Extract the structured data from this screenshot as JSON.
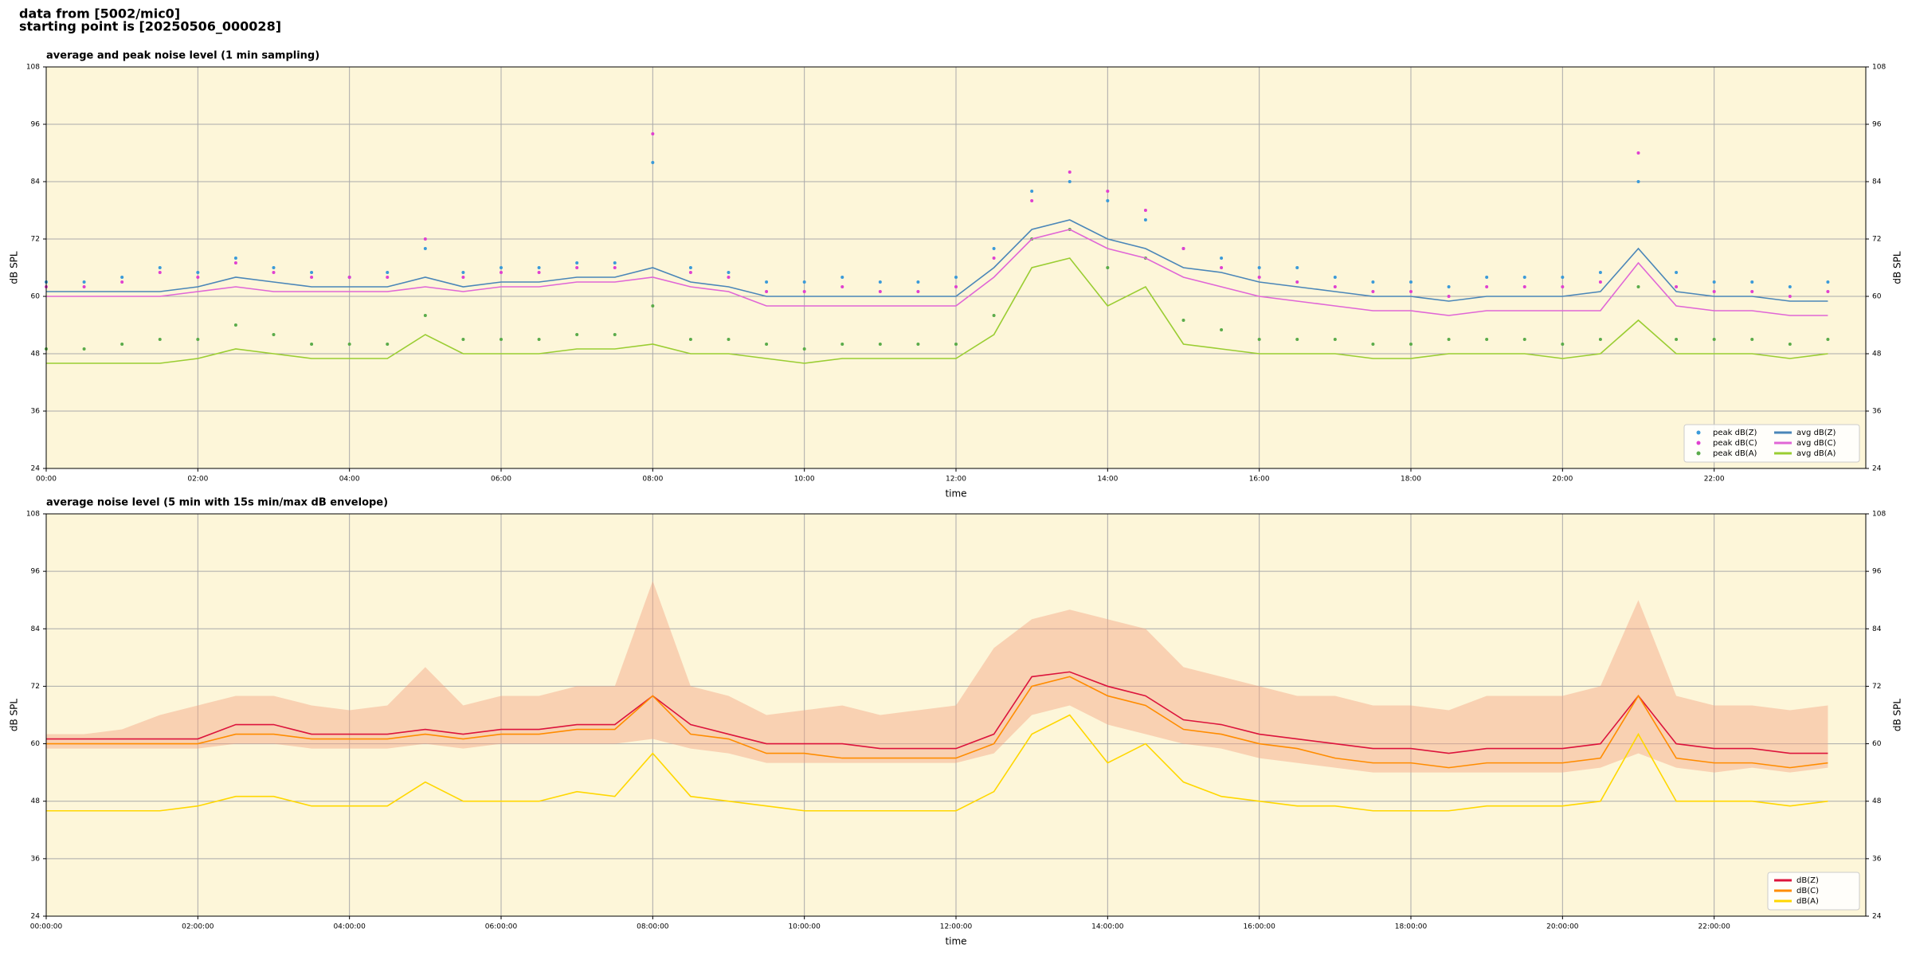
{
  "header": {
    "line1": "data from [5002/mic0]",
    "line2": "starting point is [20250506_000028]"
  },
  "chart_data": [
    {
      "type": "line",
      "title": "average and peak noise level (1 min sampling)",
      "xlabel": "time",
      "ylabel": "dB SPL",
      "xlim": [
        0,
        24
      ],
      "ylim": [
        24,
        108
      ],
      "xticks": [
        {
          "value": 0,
          "label": "00:00"
        },
        {
          "value": 2,
          "label": "02:00"
        },
        {
          "value": 4,
          "label": "04:00"
        },
        {
          "value": 6,
          "label": "06:00"
        },
        {
          "value": 8,
          "label": "08:00"
        },
        {
          "value": 10,
          "label": "10:00"
        },
        {
          "value": 12,
          "label": "12:00"
        },
        {
          "value": 14,
          "label": "14:00"
        },
        {
          "value": 16,
          "label": "16:00"
        },
        {
          "value": 18,
          "label": "18:00"
        },
        {
          "value": 20,
          "label": "20:00"
        },
        {
          "value": 22,
          "label": "22:00"
        }
      ],
      "yticks": [
        24,
        36,
        48,
        60,
        72,
        84,
        96,
        108
      ],
      "grid": true,
      "background": "#fdf6d9",
      "legend": "lower right",
      "legend_columns": 2,
      "x": [
        0,
        0.5,
        1,
        1.5,
        2,
        2.5,
        3,
        3.5,
        4,
        4.5,
        5,
        5.5,
        6,
        6.5,
        7,
        7.5,
        8,
        8.5,
        9,
        9.5,
        10,
        10.5,
        11,
        11.5,
        12,
        12.5,
        13,
        13.5,
        14,
        14.5,
        15,
        15.5,
        16,
        16.5,
        17,
        17.5,
        18,
        18.5,
        19,
        19.5,
        20,
        20.5,
        21,
        21.5,
        22,
        22.5,
        23,
        23.5
      ],
      "series": [
        {
          "name": "peak dB(Z)",
          "style": "points",
          "color": "#3a9ad9",
          "values": [
            63,
            63,
            64,
            66,
            65,
            68,
            66,
            65,
            64,
            65,
            70,
            65,
            66,
            66,
            67,
            67,
            88,
            66,
            65,
            63,
            63,
            64,
            63,
            63,
            64,
            70,
            82,
            84,
            80,
            76,
            70,
            68,
            66,
            66,
            64,
            63,
            63,
            62,
            64,
            64,
            64,
            65,
            84,
            65,
            63,
            63,
            62,
            63
          ]
        },
        {
          "name": "peak dB(C)",
          "style": "points",
          "color": "#e040d0",
          "values": [
            62,
            62,
            63,
            65,
            64,
            67,
            65,
            64,
            64,
            64,
            72,
            64,
            65,
            65,
            66,
            66,
            94,
            65,
            64,
            61,
            61,
            62,
            61,
            61,
            62,
            68,
            80,
            86,
            82,
            78,
            70,
            66,
            64,
            63,
            62,
            61,
            61,
            60,
            62,
            62,
            62,
            63,
            90,
            62,
            61,
            61,
            60,
            61
          ]
        },
        {
          "name": "peak dB(A)",
          "style": "points",
          "color": "#5aab4a",
          "values": [
            49,
            49,
            50,
            51,
            51,
            54,
            52,
            50,
            50,
            50,
            56,
            51,
            51,
            51,
            52,
            52,
            58,
            51,
            51,
            50,
            49,
            50,
            50,
            50,
            50,
            56,
            72,
            74,
            66,
            68,
            55,
            53,
            51,
            51,
            51,
            50,
            50,
            51,
            51,
            51,
            50,
            51,
            62,
            51,
            51,
            51,
            50,
            51
          ]
        },
        {
          "name": "avg dB(Z)",
          "style": "line",
          "color": "#4a86b8",
          "values": [
            61,
            61,
            61,
            61,
            62,
            64,
            63,
            62,
            62,
            62,
            64,
            62,
            63,
            63,
            64,
            64,
            66,
            63,
            62,
            60,
            60,
            60,
            60,
            60,
            60,
            66,
            74,
            76,
            72,
            70,
            66,
            65,
            63,
            62,
            61,
            60,
            60,
            59,
            60,
            60,
            60,
            61,
            70,
            61,
            60,
            60,
            59,
            59
          ]
        },
        {
          "name": "avg dB(C)",
          "style": "line",
          "color": "#e066d6",
          "values": [
            60,
            60,
            60,
            60,
            61,
            62,
            61,
            61,
            61,
            61,
            62,
            61,
            62,
            62,
            63,
            63,
            64,
            62,
            61,
            58,
            58,
            58,
            58,
            58,
            58,
            64,
            72,
            74,
            70,
            68,
            64,
            62,
            60,
            59,
            58,
            57,
            57,
            56,
            57,
            57,
            57,
            57,
            67,
            58,
            57,
            57,
            56,
            56
          ]
        },
        {
          "name": "avg dB(A)",
          "style": "line",
          "color": "#9acd32",
          "values": [
            46,
            46,
            46,
            46,
            47,
            49,
            48,
            47,
            47,
            47,
            52,
            48,
            48,
            48,
            49,
            49,
            50,
            48,
            48,
            47,
            46,
            47,
            47,
            47,
            47,
            52,
            66,
            68,
            58,
            62,
            50,
            49,
            48,
            48,
            48,
            47,
            47,
            48,
            48,
            48,
            47,
            48,
            55,
            48,
            48,
            48,
            47,
            48
          ]
        }
      ]
    },
    {
      "type": "line",
      "title": "average noise level (5 min with 15s min/max dB envelope)",
      "xlabel": "time",
      "ylabel": "dB SPL",
      "xlim": [
        0,
        24
      ],
      "ylim": [
        24,
        108
      ],
      "xticks": [
        {
          "value": 0,
          "label": "00:00:00"
        },
        {
          "value": 2,
          "label": "02:00:00"
        },
        {
          "value": 4,
          "label": "04:00:00"
        },
        {
          "value": 6,
          "label": "06:00:00"
        },
        {
          "value": 8,
          "label": "08:00:00"
        },
        {
          "value": 10,
          "label": "10:00:00"
        },
        {
          "value": 12,
          "label": "12:00:00"
        },
        {
          "value": 14,
          "label": "14:00:00"
        },
        {
          "value": 16,
          "label": "16:00:00"
        },
        {
          "value": 18,
          "label": "18:00:00"
        },
        {
          "value": 20,
          "label": "20:00:00"
        },
        {
          "value": 22,
          "label": "22:00:00"
        }
      ],
      "yticks": [
        24,
        36,
        48,
        60,
        72,
        84,
        96,
        108
      ],
      "grid": true,
      "background": "#fdf6d9",
      "legend": "lower right",
      "legend_columns": 1,
      "x": [
        0,
        0.5,
        1,
        1.5,
        2,
        2.5,
        3,
        3.5,
        4,
        4.5,
        5,
        5.5,
        6,
        6.5,
        7,
        7.5,
        8,
        8.5,
        9,
        9.5,
        10,
        10.5,
        11,
        11.5,
        12,
        12.5,
        13,
        13.5,
        14,
        14.5,
        15,
        15.5,
        16,
        16.5,
        17,
        17.5,
        18,
        18.5,
        19,
        19.5,
        20,
        20.5,
        21,
        21.5,
        22,
        22.5,
        23,
        23.5
      ],
      "series": [
        {
          "name": "dB(Z)",
          "style": "line",
          "color": "#dc143c",
          "envelope_color": "#f4a582",
          "values": [
            61,
            61,
            61,
            61,
            61,
            64,
            64,
            62,
            62,
            62,
            63,
            62,
            63,
            63,
            64,
            64,
            70,
            64,
            62,
            60,
            60,
            60,
            59,
            59,
            59,
            62,
            74,
            75,
            72,
            70,
            65,
            64,
            62,
            61,
            60,
            59,
            59,
            58,
            59,
            59,
            59,
            60,
            70,
            60,
            59,
            59,
            58,
            58
          ],
          "min_values": [
            59,
            59,
            59,
            59,
            59,
            60,
            60,
            59,
            59,
            59,
            60,
            59,
            60,
            60,
            60,
            60,
            61,
            59,
            58,
            56,
            56,
            56,
            56,
            56,
            56,
            58,
            66,
            68,
            64,
            62,
            60,
            59,
            57,
            56,
            55,
            54,
            54,
            54,
            54,
            54,
            54,
            55,
            58,
            55,
            54,
            55,
            54,
            55
          ],
          "max_values": [
            62,
            62,
            63,
            66,
            68,
            70,
            70,
            68,
            67,
            68,
            76,
            68,
            70,
            70,
            72,
            72,
            94,
            72,
            70,
            66,
            67,
            68,
            66,
            67,
            68,
            80,
            86,
            88,
            86,
            84,
            76,
            74,
            72,
            70,
            70,
            68,
            68,
            67,
            70,
            70,
            70,
            72,
            90,
            70,
            68,
            68,
            67,
            68
          ]
        },
        {
          "name": "dB(C)",
          "style": "line",
          "color": "#ff8c00",
          "values": [
            60,
            60,
            60,
            60,
            60,
            62,
            62,
            61,
            61,
            61,
            62,
            61,
            62,
            62,
            63,
            63,
            70,
            62,
            61,
            58,
            58,
            57,
            57,
            57,
            57,
            60,
            72,
            74,
            70,
            68,
            63,
            62,
            60,
            59,
            57,
            56,
            56,
            55,
            56,
            56,
            56,
            57,
            70,
            57,
            56,
            56,
            55,
            56
          ]
        },
        {
          "name": "dB(A)",
          "style": "line",
          "color": "#ffd700",
          "values": [
            46,
            46,
            46,
            46,
            47,
            49,
            49,
            47,
            47,
            47,
            52,
            48,
            48,
            48,
            50,
            49,
            58,
            49,
            48,
            47,
            46,
            46,
            46,
            46,
            46,
            50,
            62,
            66,
            56,
            60,
            52,
            49,
            48,
            47,
            47,
            46,
            46,
            46,
            47,
            47,
            47,
            48,
            62,
            48,
            48,
            48,
            47,
            48
          ]
        }
      ]
    }
  ]
}
